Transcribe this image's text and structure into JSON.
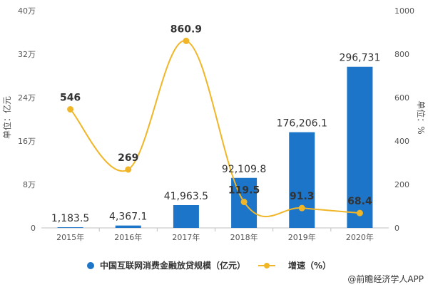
{
  "chart_data": {
    "type": "bar",
    "categories": [
      "2015年",
      "2016年",
      "2017年",
      "2018年",
      "2019年",
      "2020年"
    ],
    "series": [
      {
        "name": "中国互联网消费金融放贷规模（亿元）",
        "type": "bar",
        "axis": "left",
        "color": "#1c75c8",
        "values": [
          1183.5,
          4367.1,
          41963.5,
          92109.8,
          176206.1,
          296731
        ],
        "value_labels": [
          "1,183.5",
          "4,367.1",
          "41,963.5",
          "92,109.8",
          "176,206.1",
          "296,731"
        ]
      },
      {
        "name": "增速（%）",
        "type": "line",
        "axis": "right",
        "color": "#f0b628",
        "values": [
          546,
          269,
          860.9,
          119.5,
          91.3,
          68.4
        ],
        "value_labels": [
          "546",
          "269",
          "860.9",
          "119.5",
          "91.3",
          "68.4"
        ]
      }
    ],
    "ylabel": "单位：亿元",
    "y2label": "单位：%",
    "ylim": [
      0,
      400000
    ],
    "y2lim": [
      0,
      1000
    ],
    "yticks": [
      0,
      80000,
      160000,
      240000,
      320000,
      400000
    ],
    "ytick_labels": [
      "0",
      "8万",
      "16万",
      "24万",
      "32万",
      "40万"
    ],
    "y2ticks": [
      0,
      200,
      400,
      600,
      800,
      1000
    ],
    "y2tick_labels": [
      "0",
      "200",
      "400",
      "600",
      "800",
      "1000"
    ],
    "legend_position": "bottom",
    "grid": false
  },
  "legend": {
    "bar_label": "中国互联网消费金融放贷规模（亿元）",
    "line_label": "增速（%）"
  },
  "source": {
    "text": "@前瞻经济学人APP"
  }
}
